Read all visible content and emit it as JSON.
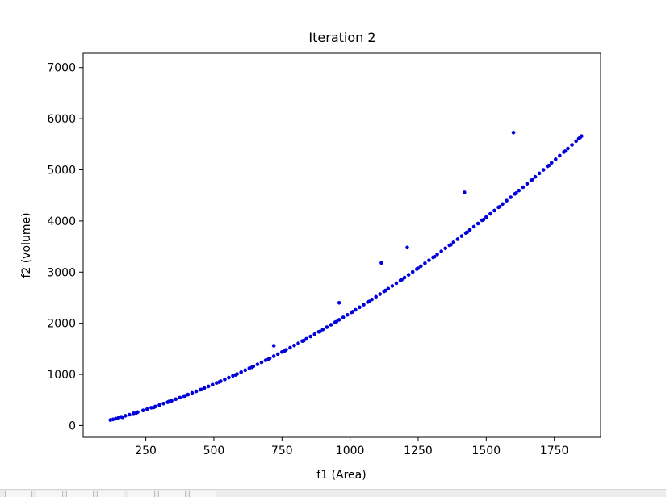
{
  "chart_data": {
    "type": "scatter",
    "title": "Iteration 2",
    "xlabel": "f1 (Area)",
    "ylabel": "f2 (volume)",
    "xlim": [
      20,
      1920
    ],
    "ylim": [
      -230,
      7280
    ],
    "xticks": [
      250,
      500,
      750,
      1000,
      1250,
      1500,
      1750
    ],
    "yticks": [
      0,
      1000,
      2000,
      3000,
      4000,
      5000,
      6000,
      7000
    ],
    "grid": false,
    "legend": false,
    "marker_color": "#0000dd",
    "series": [
      {
        "points": [
          [
            120,
            108
          ],
          [
            130,
            120
          ],
          [
            140,
            135
          ],
          [
            150,
            150
          ],
          [
            160,
            170
          ],
          [
            175,
            190
          ],
          [
            190,
            212
          ],
          [
            205,
            238
          ],
          [
            220,
            262
          ],
          [
            240,
            295
          ],
          [
            255,
            320
          ],
          [
            270,
            347
          ],
          [
            285,
            372
          ],
          [
            300,
            400
          ],
          [
            315,
            428
          ],
          [
            330,
            455
          ],
          [
            345,
            483
          ],
          [
            360,
            515
          ],
          [
            375,
            545
          ],
          [
            390,
            575
          ],
          [
            405,
            605
          ],
          [
            420,
            638
          ],
          [
            435,
            668
          ],
          [
            450,
            700
          ],
          [
            465,
            733
          ],
          [
            480,
            765
          ],
          [
            495,
            800
          ],
          [
            510,
            833
          ],
          [
            525,
            867
          ],
          [
            540,
            902
          ],
          [
            555,
            937
          ],
          [
            570,
            972
          ],
          [
            585,
            1008
          ],
          [
            600,
            1045
          ],
          [
            615,
            1082
          ],
          [
            630,
            1120
          ],
          [
            645,
            1158
          ],
          [
            660,
            1196
          ],
          [
            675,
            1236
          ],
          [
            690,
            1275
          ],
          [
            705,
            1315
          ],
          [
            720,
            1356
          ],
          [
            735,
            1397
          ],
          [
            750,
            1438
          ],
          [
            765,
            1480
          ],
          [
            780,
            1522
          ],
          [
            795,
            1565
          ],
          [
            810,
            1608
          ],
          [
            825,
            1652
          ],
          [
            840,
            1696
          ],
          [
            855,
            1741
          ],
          [
            870,
            1786
          ],
          [
            885,
            1832
          ],
          [
            900,
            1878
          ],
          [
            915,
            1924
          ],
          [
            930,
            1971
          ],
          [
            945,
            2019
          ],
          [
            960,
            2067
          ],
          [
            975,
            2115
          ],
          [
            990,
            2164
          ],
          [
            1005,
            2213
          ],
          [
            1020,
            2263
          ],
          [
            1035,
            2313
          ],
          [
            1050,
            2363
          ],
          [
            1065,
            2414
          ],
          [
            1080,
            2466
          ],
          [
            1095,
            2518
          ],
          [
            1110,
            2570
          ],
          [
            1125,
            2623
          ],
          [
            1140,
            2676
          ],
          [
            1155,
            2730
          ],
          [
            1170,
            2784
          ],
          [
            1185,
            2838
          ],
          [
            1200,
            2893
          ],
          [
            1215,
            2948
          ],
          [
            1230,
            3004
          ],
          [
            1245,
            3060
          ],
          [
            1260,
            3117
          ],
          [
            1275,
            3174
          ],
          [
            1290,
            3231
          ],
          [
            1305,
            3289
          ],
          [
            1320,
            3347
          ],
          [
            1335,
            3406
          ],
          [
            1350,
            3465
          ],
          [
            1365,
            3524
          ],
          [
            1380,
            3584
          ],
          [
            1395,
            3644
          ],
          [
            1410,
            3705
          ],
          [
            1425,
            3766
          ],
          [
            1440,
            3827
          ],
          [
            1455,
            3889
          ],
          [
            1470,
            3951
          ],
          [
            1485,
            4014
          ],
          [
            1500,
            4077
          ],
          [
            1515,
            4140
          ],
          [
            1530,
            4204
          ],
          [
            1545,
            4268
          ],
          [
            1560,
            4333
          ],
          [
            1575,
            4398
          ],
          [
            1590,
            4463
          ],
          [
            1605,
            4529
          ],
          [
            1620,
            4595
          ],
          [
            1635,
            4661
          ],
          [
            1650,
            4728
          ],
          [
            1665,
            4795
          ],
          [
            1680,
            4863
          ],
          [
            1695,
            4931
          ],
          [
            1710,
            5000
          ],
          [
            1725,
            5069
          ],
          [
            1740,
            5138
          ],
          [
            1755,
            5208
          ],
          [
            1770,
            5278
          ],
          [
            1785,
            5348
          ],
          [
            1800,
            5419
          ],
          [
            1815,
            5490
          ],
          [
            1830,
            5562
          ],
          [
            1845,
            5634
          ],
          [
            1850,
            5660
          ],
          [
            165,
            160
          ],
          [
            215,
            245
          ],
          [
            280,
            355
          ],
          [
            335,
            470
          ],
          [
            395,
            580
          ],
          [
            455,
            705
          ],
          [
            520,
            850
          ],
          [
            580,
            990
          ],
          [
            640,
            1140
          ],
          [
            700,
            1295
          ],
          [
            760,
            1460
          ],
          [
            830,
            1660
          ],
          [
            890,
            1840
          ],
          [
            950,
            2030
          ],
          [
            1010,
            2225
          ],
          [
            1070,
            2425
          ],
          [
            1130,
            2640
          ],
          [
            1190,
            2855
          ],
          [
            1250,
            3075
          ],
          [
            1310,
            3300
          ],
          [
            1370,
            3535
          ],
          [
            1430,
            3780
          ],
          [
            1490,
            4025
          ],
          [
            1550,
            4280
          ],
          [
            1610,
            4545
          ],
          [
            1670,
            4810
          ],
          [
            1730,
            5085
          ],
          [
            1790,
            5365
          ],
          [
            1840,
            5610
          ],
          [
            720,
            1560
          ],
          [
            960,
            2400
          ],
          [
            1115,
            3180
          ],
          [
            1210,
            3480
          ],
          [
            1420,
            4560
          ],
          [
            1600,
            5730
          ]
        ]
      }
    ]
  }
}
